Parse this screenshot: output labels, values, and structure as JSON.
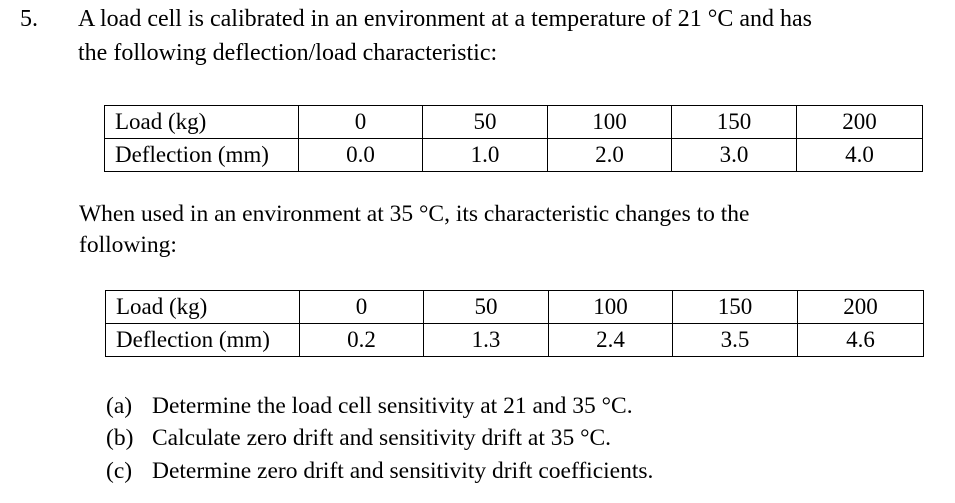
{
  "question": {
    "number": "5.",
    "intro_line1": "A load cell is calibrated in an environment at a temperature of 21 °C and has",
    "intro_line2": "the following deflection/load characteristic:"
  },
  "table1": {
    "rows": [
      {
        "label": "Load (kg)",
        "values": [
          "0",
          "50",
          "100",
          "150",
          "200"
        ]
      },
      {
        "label": "Deflection (mm)",
        "values": [
          "0.0",
          "1.0",
          "2.0",
          "3.0",
          "4.0"
        ]
      }
    ]
  },
  "para": {
    "line1": "When used in an environment at 35 °C, its characteristic changes to the",
    "line2": "following:"
  },
  "table2": {
    "rows": [
      {
        "label": "Load (kg)",
        "values": [
          "0",
          "50",
          "100",
          "150",
          "200"
        ]
      },
      {
        "label": "Deflection (mm)",
        "values": [
          "0.2",
          "1.3",
          "2.4",
          "3.5",
          "4.6"
        ]
      }
    ]
  },
  "tasks": [
    {
      "letter": "(a)",
      "text": "Determine the load cell sensitivity at 21 and 35 °C."
    },
    {
      "letter": "(b)",
      "text": "Calculate zero drift and sensitivity drift at 35 °C."
    },
    {
      "letter": "(c)",
      "text": "Determine zero drift and sensitivity drift coefficients."
    }
  ]
}
